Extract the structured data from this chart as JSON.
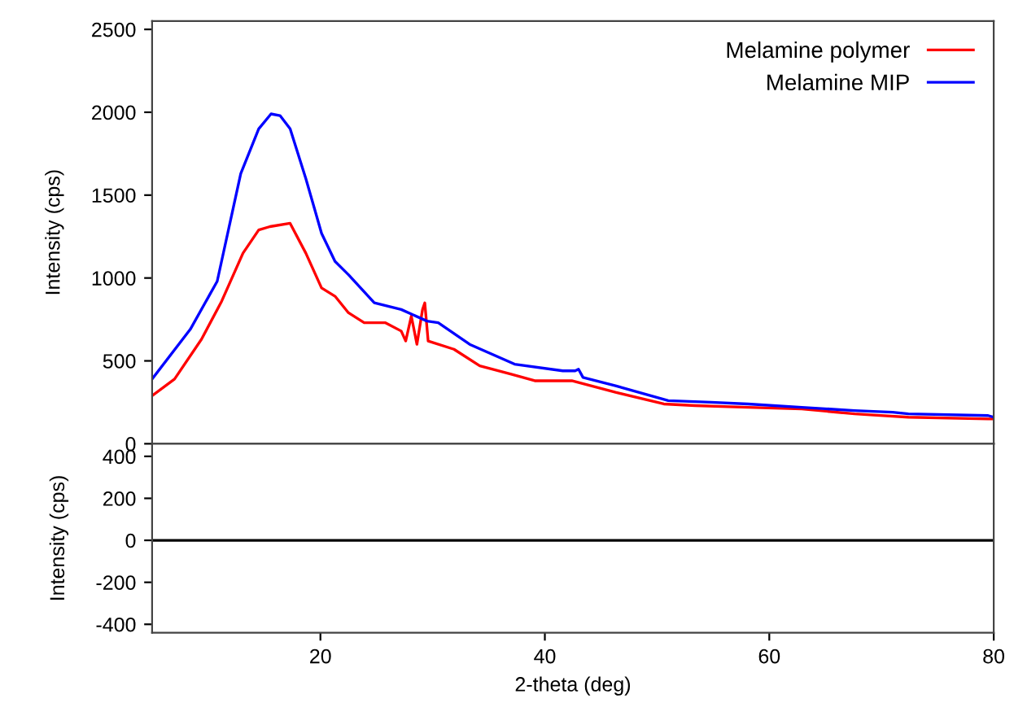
{
  "chart_data": [
    {
      "type": "line",
      "ylabel": "Intensity (cps)",
      "xlim": [
        5,
        80
      ],
      "ylim": [
        0,
        2550
      ],
      "yticks": [
        0,
        500,
        1000,
        1500,
        2000,
        2500
      ],
      "tick_labels": "y",
      "legend": "top right",
      "grid": false,
      "series": [
        {
          "name": "Melamine polymer",
          "color": "#ff0000",
          "x": [
            5,
            7,
            9.4,
            11.2,
            13.1,
            14.5,
            15.5,
            17.3,
            18.7,
            20.1,
            21.3,
            22.5,
            23.9,
            25.8,
            27.2,
            27.6,
            28.1,
            28.6,
            29.1,
            29.3,
            29.6,
            31.9,
            34.2,
            37,
            39.1,
            42.4,
            46.3,
            50.6,
            53.4,
            58.1,
            62.9,
            67.6,
            72.4,
            79.5,
            80
          ],
          "values": [
            290,
            390,
            630,
            860,
            1150,
            1290,
            1310,
            1330,
            1150,
            940,
            890,
            790,
            730,
            730,
            680,
            620,
            770,
            600,
            810,
            850,
            620,
            570,
            470,
            420,
            380,
            380,
            310,
            240,
            230,
            220,
            210,
            180,
            160,
            150,
            150
          ]
        },
        {
          "name": "Melamine MIP",
          "color": "#0000ff",
          "x": [
            5,
            8.4,
            10.8,
            12.9,
            14.5,
            15.6,
            16.4,
            17.3,
            18.7,
            20.1,
            21.3,
            22.5,
            24.8,
            27.2,
            29.5,
            30.5,
            33.3,
            37.3,
            41.6,
            42.7,
            43,
            43.4,
            46.3,
            51,
            54.8,
            58.1,
            62.9,
            67.6,
            71,
            72.4,
            79.5,
            80
          ],
          "values": [
            390,
            690,
            980,
            1630,
            1900,
            1990,
            1980,
            1900,
            1600,
            1270,
            1100,
            1020,
            850,
            810,
            740,
            730,
            600,
            480,
            440,
            440,
            450,
            400,
            350,
            260,
            250,
            240,
            220,
            200,
            190,
            180,
            170,
            160
          ]
        }
      ]
    },
    {
      "type": "line",
      "xlabel": "2-theta (deg)",
      "ylabel": "Intensity (cps)",
      "xlim": [
        5,
        80
      ],
      "xticks": [
        20,
        40,
        60,
        80
      ],
      "ylim": [
        -440,
        460
      ],
      "yticks": [
        -400,
        -200,
        0,
        200,
        400
      ],
      "grid": false,
      "series": [
        {
          "color": "#000000",
          "x": [
            5,
            80
          ],
          "values": [
            0,
            0
          ]
        }
      ]
    }
  ]
}
